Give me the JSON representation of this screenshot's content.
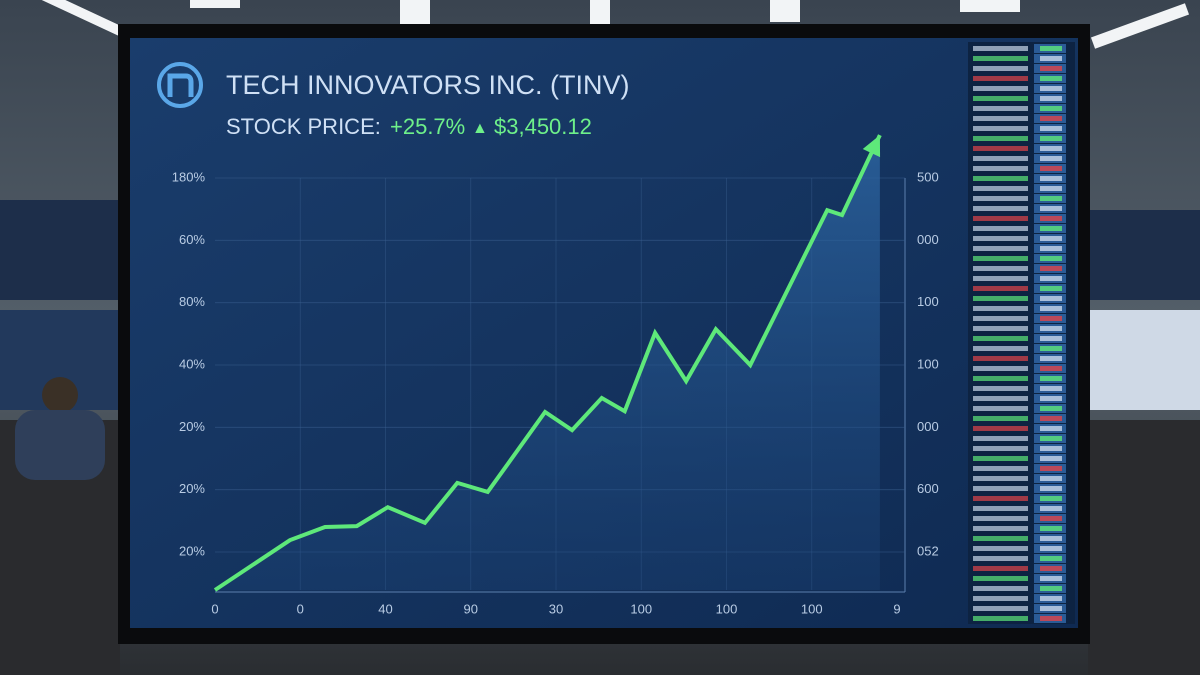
{
  "chart_data": {
    "type": "line",
    "title": "TECH INNOVATORS INC. (TINV)",
    "stock_price": {
      "label": "STOCK PRICE:",
      "change": "+25.7%",
      "arrow": "▲",
      "price": "$3,450.12"
    },
    "x": [
      0,
      11.1,
      16.3,
      21.0,
      25.6,
      31.1,
      35.9,
      40.4,
      48.9,
      52.9,
      57.3,
      60.7,
      65.2,
      69.8,
      74.2,
      79.3,
      90.7,
      92.9,
      98.5
    ],
    "series": [
      {
        "color": "#5ee87a",
        "values": [
          0,
          12.1,
          15.3,
          15.5,
          20.1,
          16.3,
          26.0,
          23.8,
          43.2,
          38.8,
          46.6,
          43.4,
          62.4,
          50.7,
          63.3,
          54.6,
          92.2,
          91.0,
          110.4
        ]
      }
    ],
    "xlim": [
      0,
      100
    ],
    "ylim": [
      0,
      100
    ],
    "y_axis_labels": [
      "180%",
      "60%",
      "80%",
      "40%",
      "20%",
      "20%",
      "20%"
    ],
    "y2_axis_labels": [
      "500",
      "000",
      "100",
      "100",
      "000",
      "600",
      "052"
    ],
    "x_axis_labels": [
      "0",
      "0",
      "40",
      "90",
      "30",
      "100",
      "100",
      "100",
      "9"
    ],
    "grid": true
  }
}
